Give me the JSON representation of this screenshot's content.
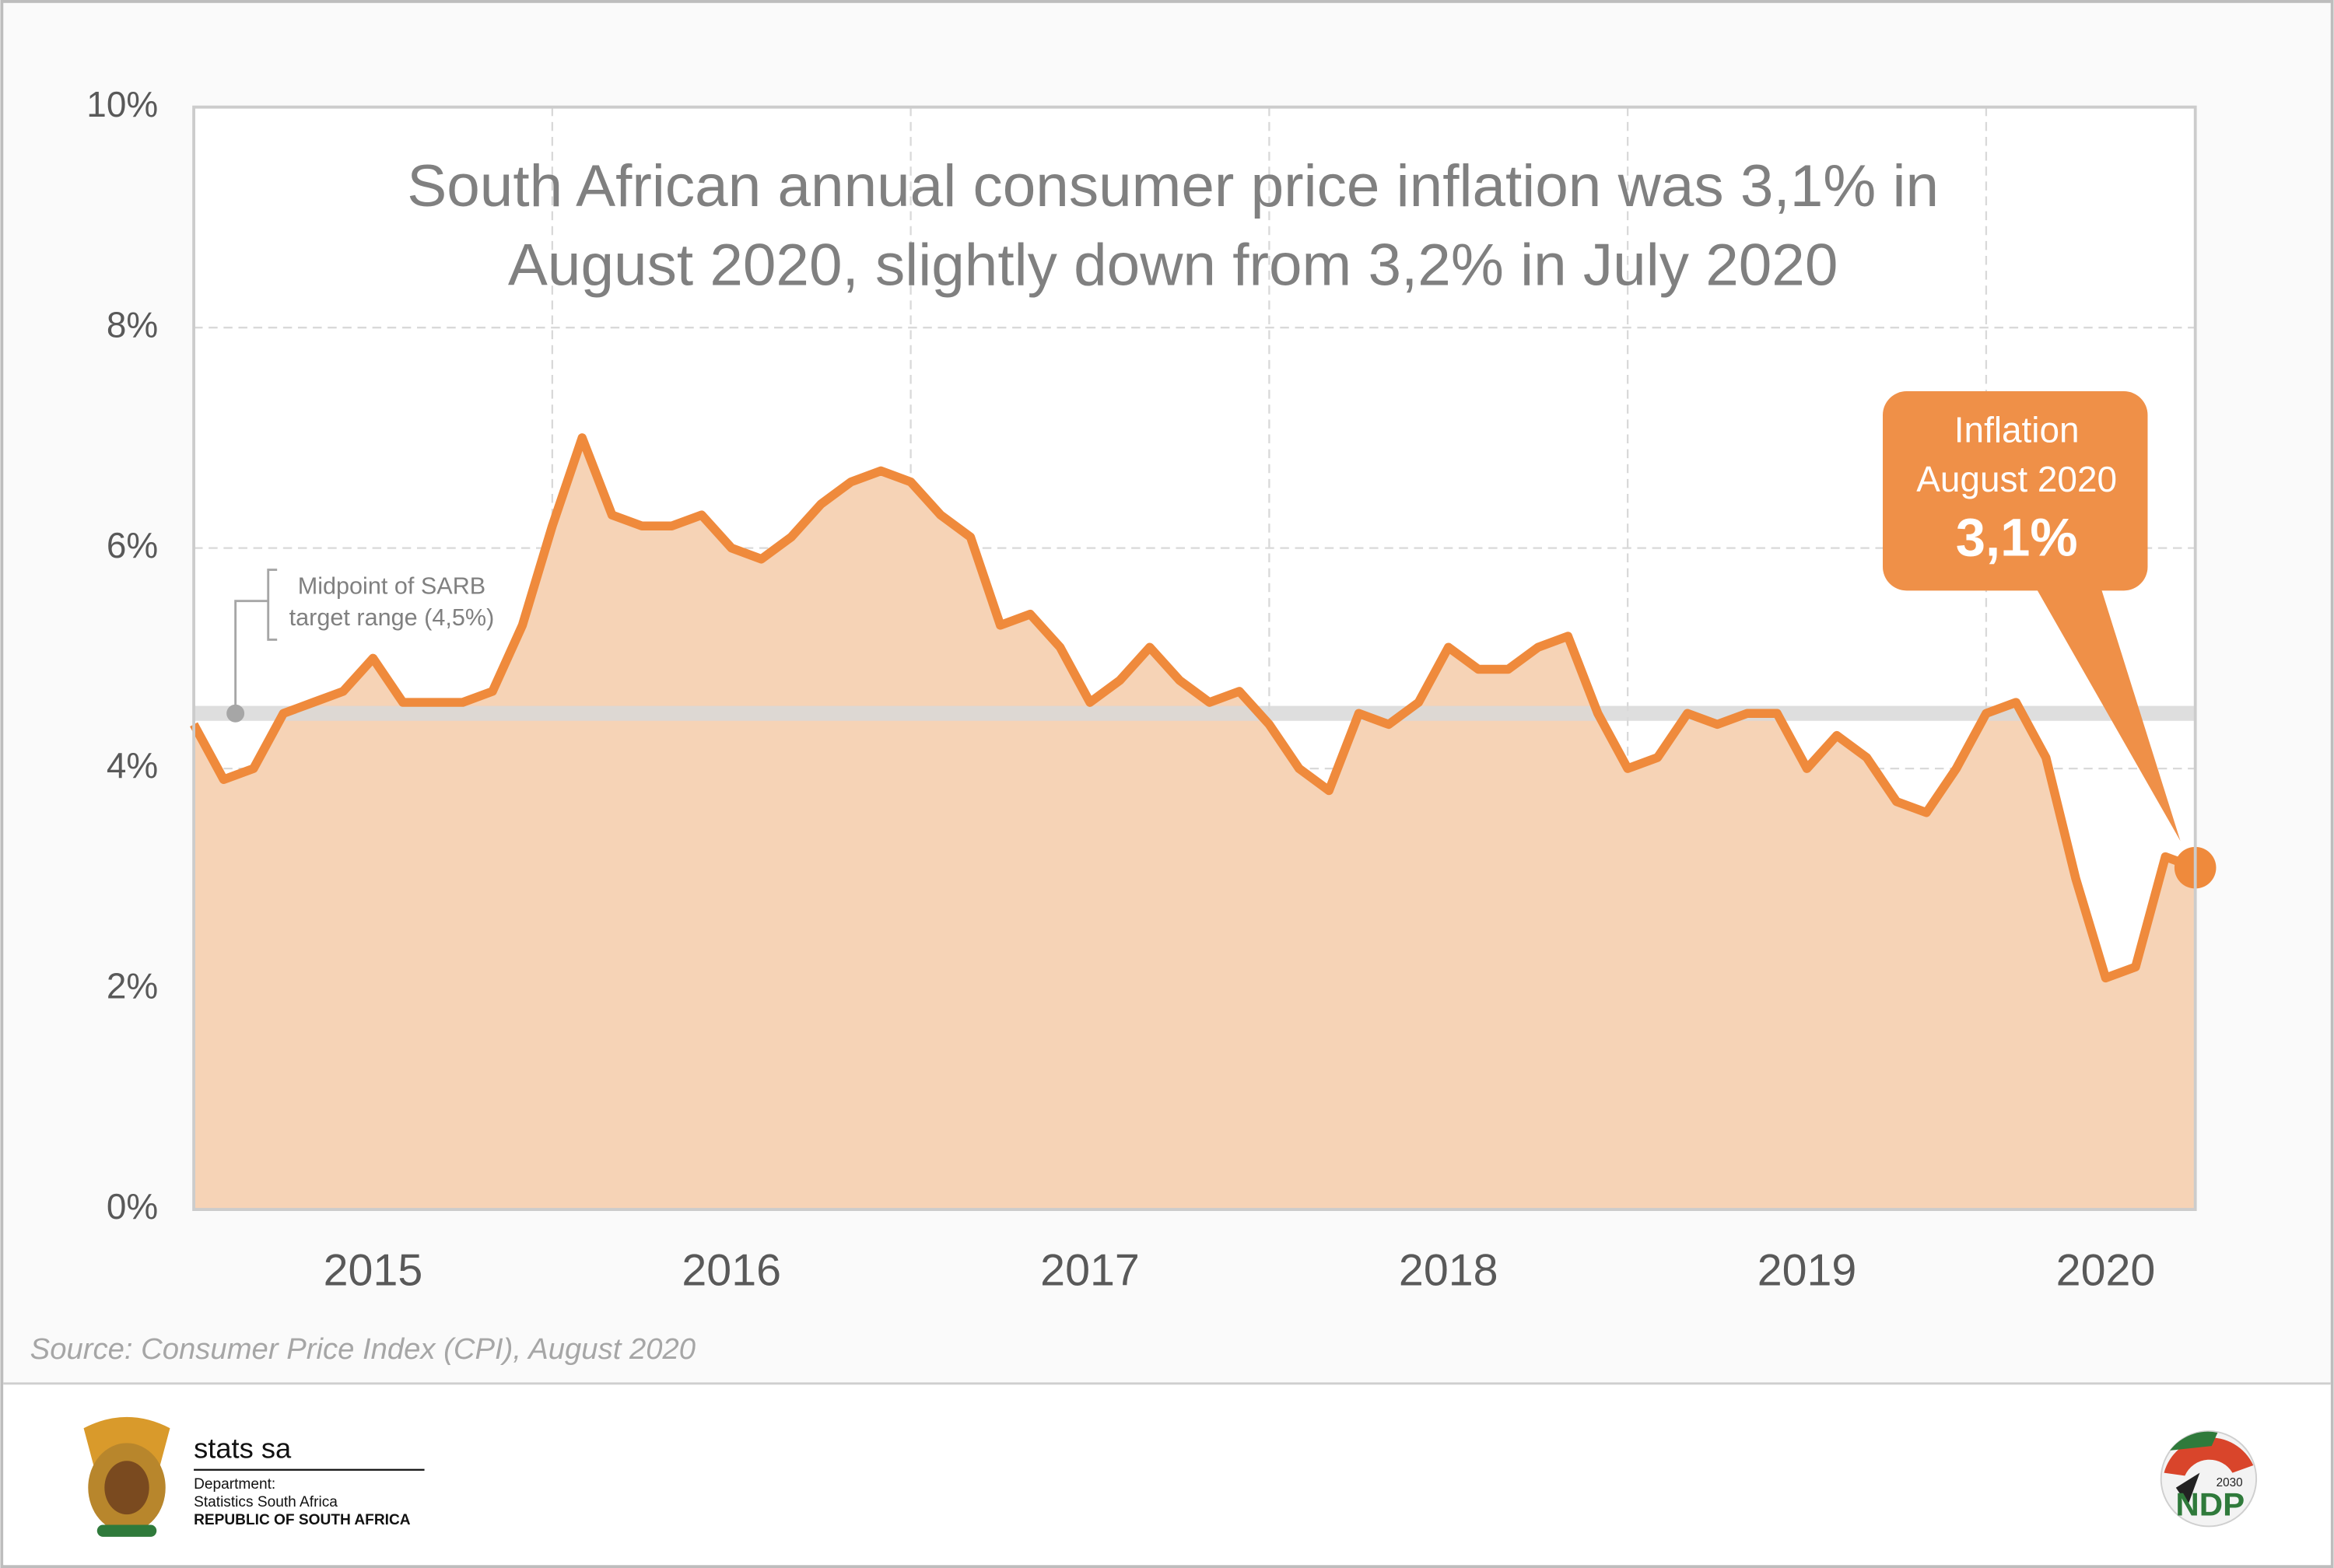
{
  "chart_data": {
    "type": "line",
    "title_lines": [
      "South African annual consumer price inflation was 3,1% in",
      "August 2020, slightly down from 3,2% in July 2020"
    ],
    "categories": [
      null,
      null,
      null,
      null,
      null,
      null,
      "2015",
      null,
      null,
      null,
      null,
      null,
      null,
      null,
      null,
      null,
      null,
      null,
      "2016",
      null,
      null,
      null,
      null,
      null,
      null,
      null,
      null,
      null,
      null,
      null,
      "2017",
      null,
      null,
      null,
      null,
      null,
      null,
      null,
      null,
      null,
      null,
      null,
      "2018",
      null,
      null,
      null,
      null,
      null,
      null,
      null,
      null,
      null,
      null,
      null,
      "2019",
      null,
      null,
      null,
      null,
      null,
      null,
      null,
      null,
      null,
      "2020",
      null,
      null,
      null
    ],
    "series": [
      {
        "color": "#ef8a3c",
        "fill": "#f6d3b6",
        "values": [
          4.4,
          3.9,
          4.0,
          4.5,
          4.6,
          4.7,
          5.0,
          4.6,
          4.6,
          4.6,
          4.7,
          5.3,
          6.2,
          7.0,
          6.3,
          6.2,
          6.2,
          6.3,
          6.0,
          5.9,
          6.1,
          6.4,
          6.6,
          6.7,
          6.6,
          6.3,
          6.1,
          5.3,
          5.4,
          5.1,
          4.6,
          4.8,
          5.1,
          4.8,
          4.6,
          4.7,
          4.4,
          4.0,
          3.8,
          4.5,
          4.4,
          4.6,
          5.1,
          4.9,
          4.9,
          5.1,
          5.2,
          4.5,
          4.0,
          4.1,
          4.5,
          4.4,
          4.5,
          4.5,
          4.0,
          4.3,
          4.1,
          3.7,
          3.6,
          4.0,
          4.5,
          4.6,
          4.1,
          3.0,
          2.1,
          2.2,
          3.2,
          3.1
        ]
      }
    ],
    "ylim": [
      0,
      10
    ],
    "yticks": [
      {
        "value": 0,
        "label": "0%"
      },
      {
        "value": 2,
        "label": "2%"
      },
      {
        "value": 4,
        "label": "4%"
      },
      {
        "value": 6,
        "label": "6%"
      },
      {
        "value": 8,
        "label": "8%"
      },
      {
        "value": 10,
        "label": "10%"
      }
    ],
    "grid": true,
    "reference_line": {
      "value": 4.5,
      "label_lines": [
        "Midpoint of SARB",
        "target range (4,5%)"
      ],
      "color": "#d9d9d9"
    },
    "callout": {
      "lines": [
        "Inflation",
        "August 2020"
      ],
      "value": 3.1,
      "value_label": "3,1%",
      "color": "#ef9048"
    },
    "source": "Source: Consumer Price Index (CPI), August 2020"
  },
  "footer": {
    "brand": "stats sa",
    "department": "Department:",
    "agency": "Statistics South Africa",
    "country": "REPUBLIC OF SOUTH AFRICA",
    "ndp": "NDP",
    "ndp_year": "2030"
  }
}
